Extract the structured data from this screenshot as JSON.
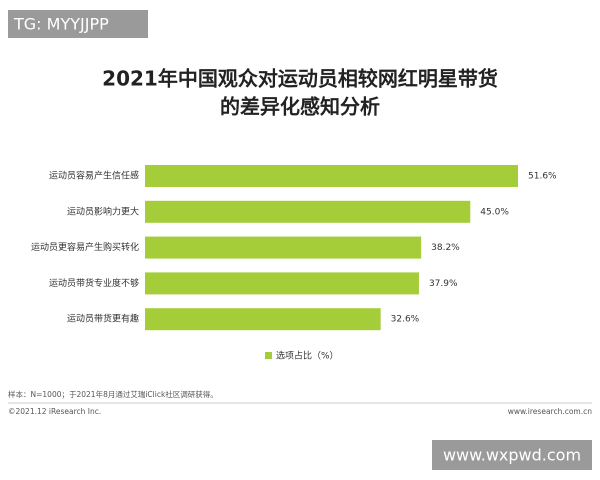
{
  "watermark_top": "TG: MYYJJPP",
  "watermark_bottom": "www.wxpwd.com",
  "chart_data": {
    "type": "hbar",
    "title": [
      "2021年中国观众对运动员相较网红明星带货",
      "的差异化感知分析"
    ],
    "categories": [
      "运动员容易产生信任感",
      "运动员影响力更大",
      "运动员更容易产生购买转化",
      "运动员带货专业度不够",
      "运动员带货更有趣"
    ],
    "series": [
      {
        "name": "选项占比（%）",
        "color": "#a5cd39",
        "values": [
          51.6,
          45.0,
          38.2,
          37.9,
          32.6
        ],
        "value_labels": [
          "51.6%",
          "45.0%",
          "38.2%",
          "37.9%",
          "32.6%"
        ]
      }
    ],
    "note": "样本：N=1000；于2021年8月通过艾瑞iClick社区调研获得。",
    "copyright": "©2021.12 iResearch Inc.",
    "website": "www.iresearch.com.cn"
  }
}
